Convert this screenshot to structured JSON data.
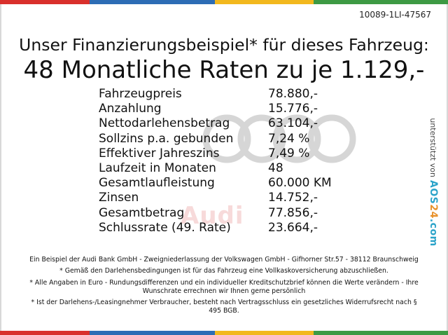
{
  "reference_code": "10089-1LI-47567",
  "headline": "Unser Finanzierungsbeispiel* für dieses Fahrzeug:",
  "subheadline": "48 Monatliche Raten zu je 1.129,-",
  "finance_rows": [
    {
      "label": "Fahrzeugpreis",
      "value": "78.880,-"
    },
    {
      "label": "Anzahlung",
      "value": "15.776,-"
    },
    {
      "label": "Nettodarlehensbetrag",
      "value": "63.104,-"
    },
    {
      "label": "Sollzins p.a. gebunden",
      "value": "7,24 %"
    },
    {
      "label": "Effektiver Jahreszins",
      "value": "7,49 %"
    },
    {
      "label": "Laufzeit in Monaten",
      "value": "48"
    },
    {
      "label": "Gesamtlaufleistung",
      "value": "60.000 KM"
    },
    {
      "label": "Zinsen",
      "value": "14.752,-"
    },
    {
      "label": "Gesamtbetrag",
      "value": "77.856,-"
    },
    {
      "label": "Schlussrate (49. Rate)",
      "value": "23.664,-"
    }
  ],
  "watermark_text": "Audi",
  "support_text": "unterstützt von",
  "support_brand": {
    "prefix": "AOS",
    "accent": "24",
    "suffix": ".com"
  },
  "footer": [
    "Ein Beispiel der Audi Bank GmbH - Zweigniederlassung der Volkswagen GmbH - Gifhorner Str.57 - 38112 Braunschweig",
    "* Gemäß den Darlehensbedingungen ist für das Fahrzeug eine Vollkaskoversicherung abzuschließen.",
    "* Alle Angaben in Euro - Rundungsdifferenzen und ein individueller Kreditschutzbrief können die Werte verändern - Ihre Wunschrate errechnen wir Ihnen gerne persönlich",
    "* Ist der Darlehens-/Leasingnehmer Verbraucher, besteht nach Vertragsschluss ein gesetzliches Widerrufsrecht nach § 495 BGB."
  ],
  "colors": {
    "bar_segments": [
      "#d9302c",
      "#2d6db5",
      "#f2b81e",
      "#3d9a44"
    ],
    "watermark": "#f7dada",
    "logo_rings": "#d6d6d6"
  }
}
